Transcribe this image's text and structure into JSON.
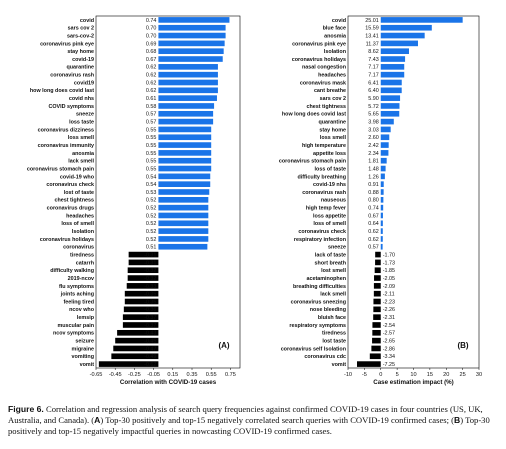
{
  "caption": {
    "label": "Figure 6.",
    "text_1": " Correlation and regression analysis of search query frequencies against confirmed COVID-19 cases in four countries (US, UK, Australia, and Canada). (",
    "letter_a": "A",
    "text_2": ") Top-30 positively and top-15 negatively correlated search queries with COVID-19 confirmed cases; (",
    "letter_b": "B",
    "text_3": ") Top-30 positively and top-15 negatively impactful queries in nowcasting COVID-19 confirmed cases."
  },
  "colors": {
    "positive": "#1a74e8",
    "negative": "#000000"
  },
  "chart_data": [
    {
      "type": "bar",
      "orientation": "horizontal",
      "panel_label": "(A)",
      "xlabel": "Correlation with COVID-19 cases",
      "xlim": [
        -0.65,
        0.85
      ],
      "xticks": [
        -0.65,
        -0.45,
        -0.25,
        -0.05,
        0.15,
        0.35,
        0.55,
        0.75
      ],
      "xtick_labels": [
        "-0.65",
        "-0.45",
        "-0.25",
        "-0.05",
        "0.15",
        "0.35",
        "0.55",
        "0.75"
      ],
      "value_labels_at_zero": true,
      "categories": [
        "covid",
        "sars cov 2",
        "sars-cov-2",
        "coronavirus pink eye",
        "stay home",
        "covid-19",
        "quarantine",
        "coronavirus rash",
        "covid19",
        "how long does covid last",
        "covid nhs",
        "COVID symptoms",
        "sneeze",
        "loss taste",
        "coronavirus dizziness",
        "loss smell",
        "coronavirus immunity",
        "anosmia",
        "lack smell",
        "coronavirus stomach pain",
        "covid-19 who",
        "coronavirus check",
        "lost of taste",
        "chest tightness",
        "coronavirus drugs",
        "headaches",
        "loss of smell",
        "Isolation",
        "coronavirus holidays",
        "coronavirus",
        "tiredness",
        "catarrh",
        "difficulty walking",
        "2019-ncov",
        "flu symptoms",
        "joints aching",
        "feeling tired",
        "ncov who",
        "lemsip",
        "muscular pain",
        "ncov symptoms",
        "seizure",
        "migraine",
        "vomiting",
        "vomit"
      ],
      "values": [
        0.74,
        0.7,
        0.7,
        0.69,
        0.68,
        0.67,
        0.62,
        0.62,
        0.62,
        0.62,
        0.61,
        0.58,
        0.57,
        0.57,
        0.55,
        0.55,
        0.55,
        0.55,
        0.55,
        0.55,
        0.54,
        0.54,
        0.53,
        0.52,
        0.52,
        0.52,
        0.52,
        0.52,
        0.52,
        0.51,
        -0.31,
        -0.31,
        -0.32,
        -0.32,
        -0.33,
        -0.35,
        -0.35,
        -0.36,
        -0.37,
        -0.37,
        -0.43,
        -0.45,
        -0.47,
        -0.49,
        -0.62
      ],
      "value_labels": [
        "0.74",
        "0.70",
        "0.70",
        "0.69",
        "0.68",
        "0.67",
        "0.62",
        "0.62",
        "0.62",
        "0.62",
        "0.61",
        "0.58",
        "0.57",
        "0.57",
        "0.55",
        "0.55",
        "0.55",
        "0.55",
        "0.55",
        "0.55",
        "0.54",
        "0.54",
        "0.53",
        "0.52",
        "0.52",
        "0.52",
        "0.52",
        "0.52",
        "0.52",
        "0.51",
        "-0.31",
        "-0.31",
        "-0.32",
        "-0.32",
        "-0.33",
        "-0.35",
        "-0.35",
        "-0.36",
        "-0.37",
        "-0.37",
        "-0.43",
        "-0.45",
        "-0.47",
        "-0.49",
        "-0.62"
      ]
    },
    {
      "type": "bar",
      "orientation": "horizontal",
      "panel_label": "(B)",
      "xlabel": "Case estimation impact (%)",
      "xlim": [
        -10,
        30
      ],
      "xticks": [
        -10,
        -5,
        0,
        5,
        10,
        15,
        20,
        25,
        30
      ],
      "xtick_labels": [
        "-10",
        "-5",
        "0",
        "5",
        "10",
        "15",
        "20",
        "25",
        "30"
      ],
      "value_labels_at_zero": false,
      "categories": [
        "covid",
        "blue face",
        "anosmia",
        "coronavirus pink eye",
        "Isolation",
        "coronavirus holidays",
        "nasal congestion",
        "headaches",
        "coronavirus mask",
        "cant breathe",
        "sars cov 2",
        "chest tightness",
        "how long does covid last",
        "quarantine",
        "stay home",
        "loss smell",
        "high temperature",
        "appetite loss",
        "coronavirus stomach pain",
        "loss of taste",
        "difficulty breathing",
        "covid-19 nhs",
        "coronavirus rash",
        "nauseous",
        "high temp fever",
        "loss appetite",
        "loss of smell",
        "coronavirus check",
        "respiratory infection",
        "sneeze",
        "lack of taste",
        "short breath",
        "lost smell",
        "acetaminophen",
        "breathing difficulties",
        "lack smell",
        "coronavirus sneezing",
        "nose bleeding",
        "bluish face",
        "respiratory symptoms",
        "tiredness",
        "lost taste",
        "coronavirus self Isolation",
        "coronavirus cdc",
        "vomit"
      ],
      "values": [
        25.01,
        15.59,
        13.41,
        11.37,
        8.62,
        7.43,
        7.17,
        7.17,
        6.41,
        6.4,
        5.9,
        5.72,
        5.65,
        3.98,
        3.03,
        2.6,
        2.42,
        2.34,
        1.81,
        1.48,
        1.26,
        0.91,
        0.88,
        0.8,
        0.74,
        0.67,
        0.64,
        0.62,
        0.62,
        0.57,
        -1.7,
        -1.73,
        -1.85,
        -2.05,
        -2.09,
        -2.11,
        -2.23,
        -2.26,
        -2.31,
        -2.54,
        -2.57,
        -2.65,
        -2.86,
        -3.34,
        -7.25
      ],
      "value_labels": [
        "25.01",
        "15.59",
        "13.41",
        "11.37",
        "8.62",
        "7.43",
        "7.17",
        "7.17",
        "6.41",
        "6.40",
        "5.90",
        "5.72",
        "5.65",
        "3.98",
        "3.03",
        "2.60",
        "2.42",
        "2.34",
        "1.81",
        "1.48",
        "1.26",
        "0.91",
        "0.88",
        "0.80",
        "0.74",
        "0.67",
        "0.64",
        "0.62",
        "0.62",
        "0.57",
        "-1.70",
        "-1.73",
        "-1.85",
        "-2.05",
        "-2.09",
        "-2.11",
        "-2.23",
        "-2.26",
        "-2.31",
        "-2.54",
        "-2.57",
        "-2.65",
        "-2.86",
        "-3.34",
        "-7.25"
      ]
    }
  ]
}
